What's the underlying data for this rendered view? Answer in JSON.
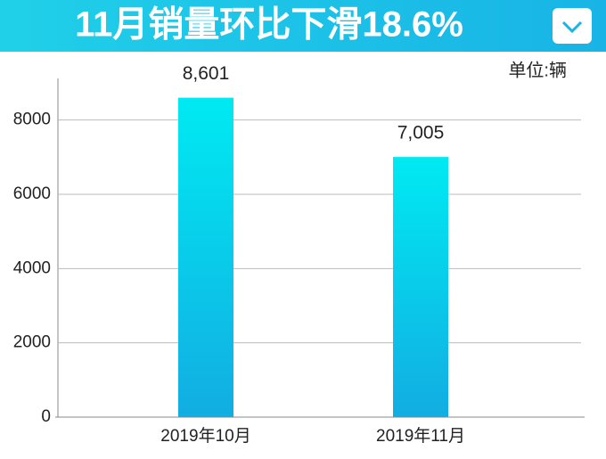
{
  "chart_data": {
    "type": "bar",
    "title": "11月销量环比下滑18.6%",
    "unit_label": "单位:辆",
    "categories": [
      "2019年10月",
      "2019年11月"
    ],
    "values": [
      8601,
      7005
    ],
    "value_labels": [
      "8,601",
      "7,005"
    ],
    "ylim": [
      0,
      9000
    ],
    "yticks": [
      0,
      2000,
      4000,
      6000,
      8000
    ],
    "grid": true
  }
}
